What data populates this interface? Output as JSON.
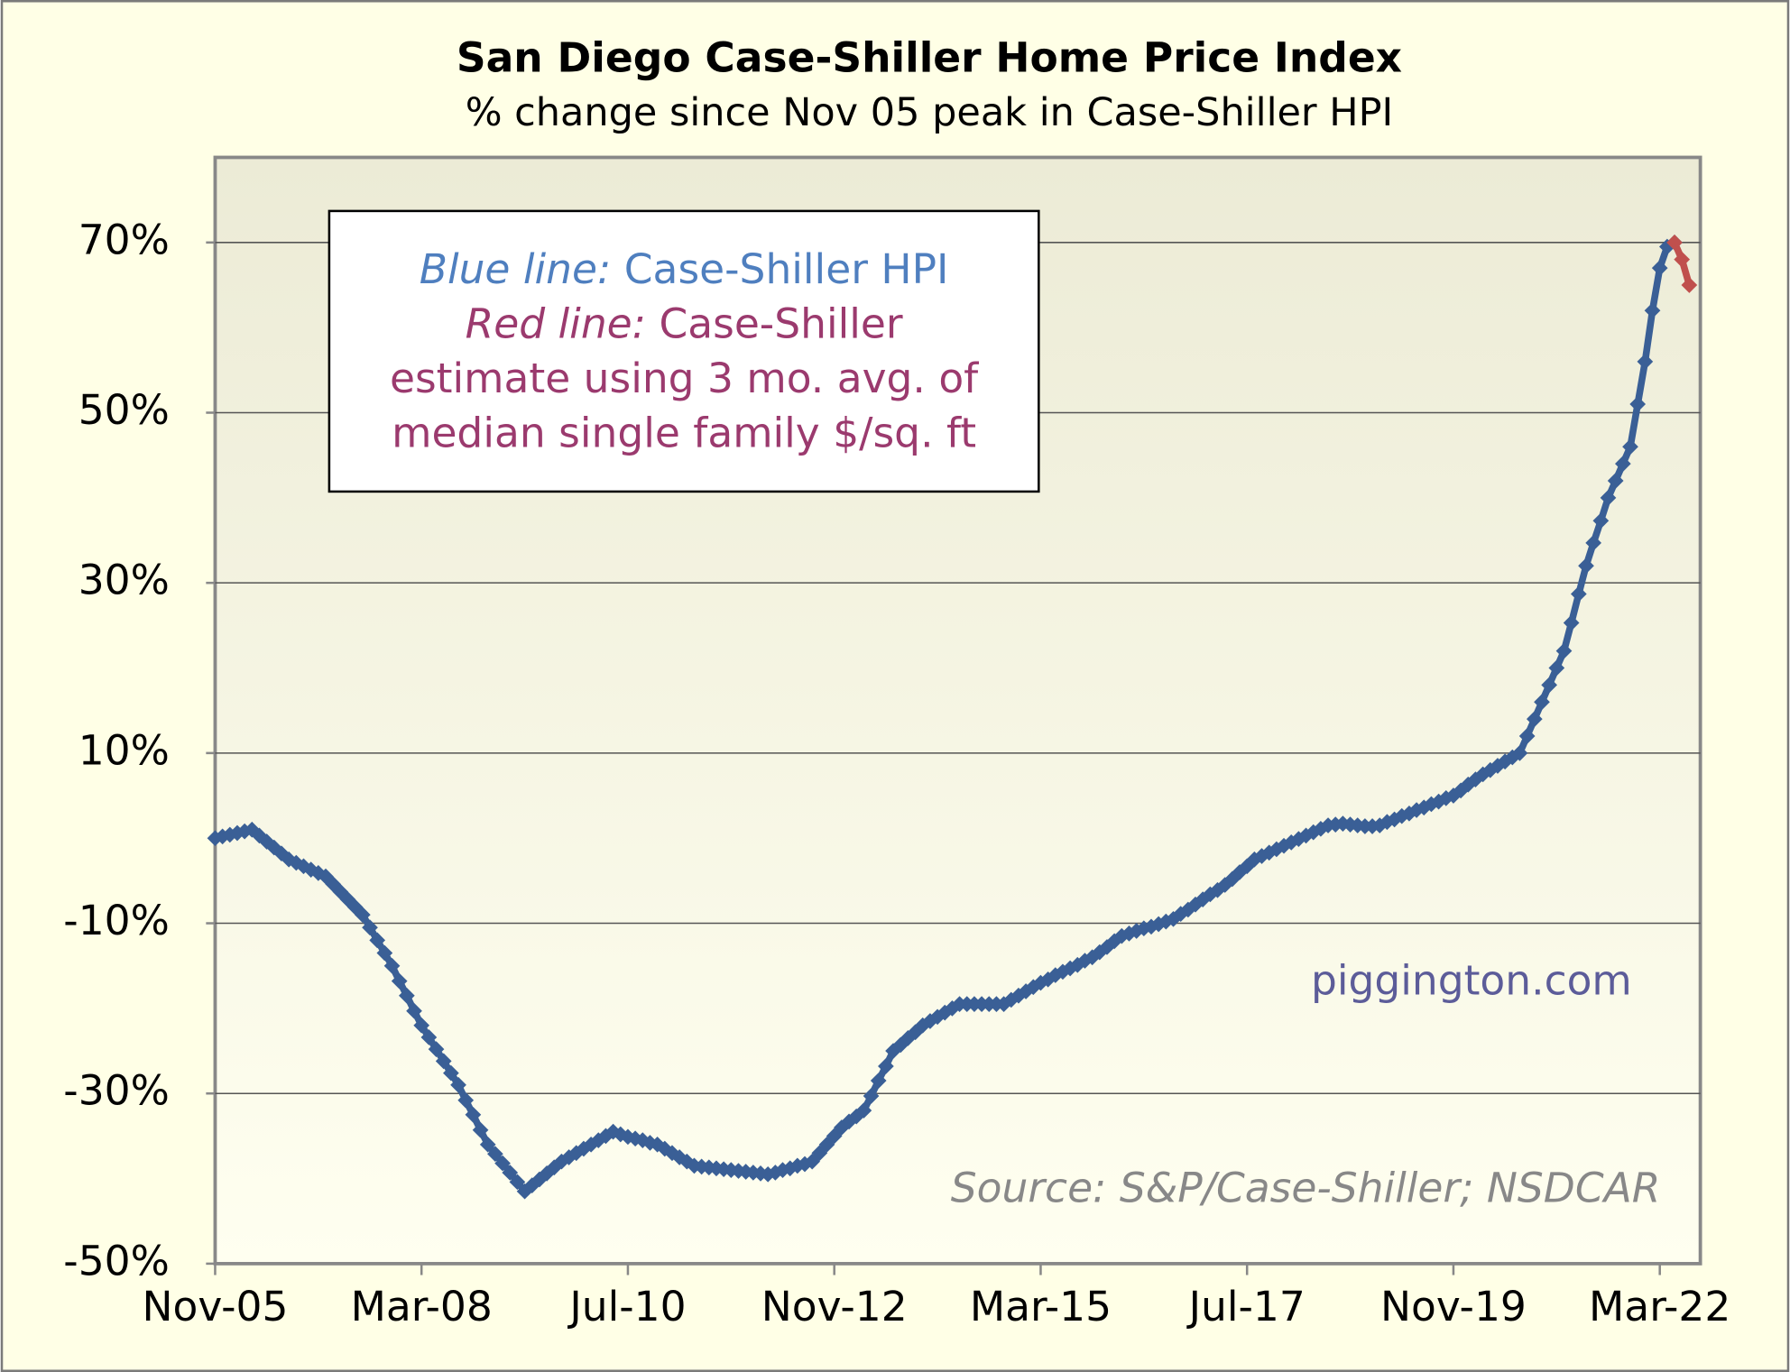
{
  "chart_data": {
    "type": "line",
    "title": "San Diego Case-Shiller Home Price Index",
    "subtitle": "% change since Nov 05 peak in Case-Shiller HPI",
    "annotation": {
      "blue_label": "Blue line:",
      "blue_text": "Case-Shiller HPI",
      "red_label": "Red line:",
      "red_text": "Case-Shiller",
      "red_lines": [
        "estimate using 3 mo. avg. of",
        "median single family $/sq. ft"
      ]
    },
    "watermark": "piggington.com",
    "source": "Source: S&P/Case-Shiller; NSDCAR",
    "categories": [
      "Nov-05",
      null,
      null,
      null,
      null,
      null,
      null,
      null,
      null,
      null,
      null,
      null,
      null,
      null,
      null,
      null,
      null,
      null,
      null,
      null,
      null,
      null,
      null,
      null,
      null,
      null,
      null,
      null,
      "Mar-08",
      null,
      null,
      null,
      null,
      null,
      null,
      null,
      null,
      null,
      null,
      null,
      null,
      null,
      null,
      null,
      null,
      null,
      null,
      null,
      null,
      null,
      null,
      null,
      null,
      null,
      null,
      null,
      "Jul-10",
      null,
      null,
      null,
      null,
      null,
      null,
      null,
      null,
      null,
      null,
      null,
      null,
      null,
      null,
      null,
      null,
      null,
      null,
      null,
      null,
      null,
      null,
      null,
      null,
      null,
      null,
      null,
      "Nov-12",
      null,
      null,
      null,
      null,
      null,
      null,
      null,
      null,
      null,
      null,
      null,
      null,
      null,
      null,
      null,
      null,
      null,
      null,
      null,
      null,
      null,
      null,
      null,
      null,
      null,
      null,
      null,
      "Mar-15",
      null,
      null,
      null,
      null,
      null,
      null,
      null,
      null,
      null,
      null,
      null,
      null,
      null,
      null,
      null,
      null,
      null,
      null,
      null,
      null,
      null,
      null,
      null,
      null,
      null,
      null,
      null,
      "Jul-17",
      null,
      null,
      null,
      null,
      null,
      null,
      null,
      null,
      null,
      null,
      null,
      null,
      null,
      null,
      null,
      null,
      null,
      null,
      null,
      null,
      null,
      null,
      null,
      null,
      null,
      null,
      null,
      "Nov-19",
      null,
      null,
      null,
      null,
      null,
      null,
      null,
      null,
      null,
      null,
      null,
      null,
      null,
      null,
      null,
      null,
      null,
      null,
      null,
      null,
      null,
      null,
      null,
      null,
      null,
      null,
      null,
      "Mar-22",
      null,
      null,
      null,
      null
    ],
    "series": [
      {
        "color": "#3a5f96",
        "values": [
          0,
          0.2,
          0.4,
          0.6,
          0.8,
          1,
          0.3,
          -0.4,
          -1.1,
          -1.8,
          -2.5,
          -2.9,
          -3.3,
          -3.7,
          -4.1,
          -4.5,
          -5.4,
          -6.3,
          -7.2,
          -8.1,
          -9,
          -10.5,
          -12,
          -13.5,
          -15,
          -16.8,
          -18.5,
          -20.3,
          -22,
          -23.4,
          -24.8,
          -26.2,
          -27.6,
          -29,
          -30.8,
          -32.5,
          -34.3,
          -36,
          -37.1,
          -38.2,
          -39.3,
          -40.4,
          -41.5,
          -40.8,
          -40.1,
          -39.4,
          -38.7,
          -38,
          -37.5,
          -37,
          -36.5,
          -36,
          -35.5,
          -35,
          -34.5,
          -34.8,
          -35.1,
          -35.3,
          -35.5,
          -35.8,
          -36,
          -36.5,
          -37,
          -37.5,
          -38,
          -38.5,
          -38.6,
          -38.7,
          -38.8,
          -38.9,
          -39,
          -39.1,
          -39.2,
          -39.3,
          -39.4,
          -39.5,
          -39.3,
          -39,
          -38.8,
          -38.5,
          -38.3,
          -38,
          -37,
          -36,
          -35,
          -34,
          -33.3,
          -32.7,
          -32,
          -30.3,
          -28.5,
          -26.8,
          -25,
          -24.3,
          -23.5,
          -22.8,
          -22,
          -21.5,
          -21,
          -20.5,
          -20,
          -19.5,
          -19.5,
          -19.5,
          -19.5,
          -19.5,
          -19.5,
          -19.5,
          -19,
          -18.5,
          -18,
          -17.5,
          -17,
          -16.6,
          -16.1,
          -15.7,
          -15.3,
          -14.9,
          -14.4,
          -14,
          -13.4,
          -12.8,
          -12.1,
          -11.5,
          -11.2,
          -10.9,
          -10.6,
          -10.4,
          -10.1,
          -9.8,
          -9.5,
          -8.9,
          -8.4,
          -7.8,
          -7.2,
          -6.6,
          -6.1,
          -5.5,
          -4.8,
          -4,
          -3.3,
          -2.5,
          -2.1,
          -1.7,
          -1.3,
          -0.9,
          -0.5,
          -0.1,
          0.3,
          0.7,
          1.1,
          1.5,
          1.6,
          1.7,
          1.6,
          1.5,
          1.4,
          1.4,
          1.5,
          1.9,
          2.2,
          2.6,
          2.9,
          3.3,
          3.6,
          4,
          4.3,
          4.7,
          5,
          5.6,
          6.3,
          6.9,
          7.5,
          8,
          8.5,
          9,
          9.5,
          10,
          12,
          14,
          16,
          18,
          20,
          22,
          25.3,
          28.7,
          32,
          34.7,
          37.3,
          40,
          42,
          44,
          46,
          51,
          56,
          62,
          67,
          69.5,
          70,
          null,
          null
        ]
      },
      {
        "color": "#c0504d",
        "values": [
          null,
          null,
          null,
          null,
          null,
          null,
          null,
          null,
          null,
          null,
          null,
          null,
          null,
          null,
          null,
          null,
          null,
          null,
          null,
          null,
          null,
          null,
          null,
          null,
          null,
          null,
          null,
          null,
          null,
          null,
          null,
          null,
          null,
          null,
          null,
          null,
          null,
          null,
          null,
          null,
          null,
          null,
          null,
          null,
          null,
          null,
          null,
          null,
          null,
          null,
          null,
          null,
          null,
          null,
          null,
          null,
          null,
          null,
          null,
          null,
          null,
          null,
          null,
          null,
          null,
          null,
          null,
          null,
          null,
          null,
          null,
          null,
          null,
          null,
          null,
          null,
          null,
          null,
          null,
          null,
          null,
          null,
          null,
          null,
          null,
          null,
          null,
          null,
          null,
          null,
          null,
          null,
          null,
          null,
          null,
          null,
          null,
          null,
          null,
          null,
          null,
          null,
          null,
          null,
          null,
          null,
          null,
          null,
          null,
          null,
          null,
          null,
          null,
          null,
          null,
          null,
          null,
          null,
          null,
          null,
          null,
          null,
          null,
          null,
          null,
          null,
          null,
          null,
          null,
          null,
          null,
          null,
          null,
          null,
          null,
          null,
          null,
          null,
          null,
          null,
          null,
          null,
          null,
          null,
          null,
          null,
          null,
          null,
          null,
          null,
          null,
          null,
          null,
          null,
          null,
          null,
          null,
          null,
          null,
          null,
          null,
          null,
          null,
          null,
          null,
          null,
          null,
          null,
          null,
          null,
          null,
          null,
          null,
          null,
          null,
          null,
          null,
          null,
          null,
          null,
          null,
          null,
          null,
          null,
          null,
          null,
          null,
          null,
          null,
          null,
          null,
          null,
          null,
          null,
          null,
          null,
          null,
          null,
          70,
          68,
          65
        ]
      }
    ],
    "ylim": [
      -50,
      80
    ],
    "yticks": [
      {
        "value": -50,
        "label": "-50%"
      },
      {
        "value": -30,
        "label": "-30%"
      },
      {
        "value": -10,
        "label": "-10%"
      },
      {
        "value": 10,
        "label": "10%"
      },
      {
        "value": 30,
        "label": "30%"
      },
      {
        "value": 50,
        "label": "50%"
      },
      {
        "value": 70,
        "label": "70%"
      }
    ],
    "grid": true
  }
}
